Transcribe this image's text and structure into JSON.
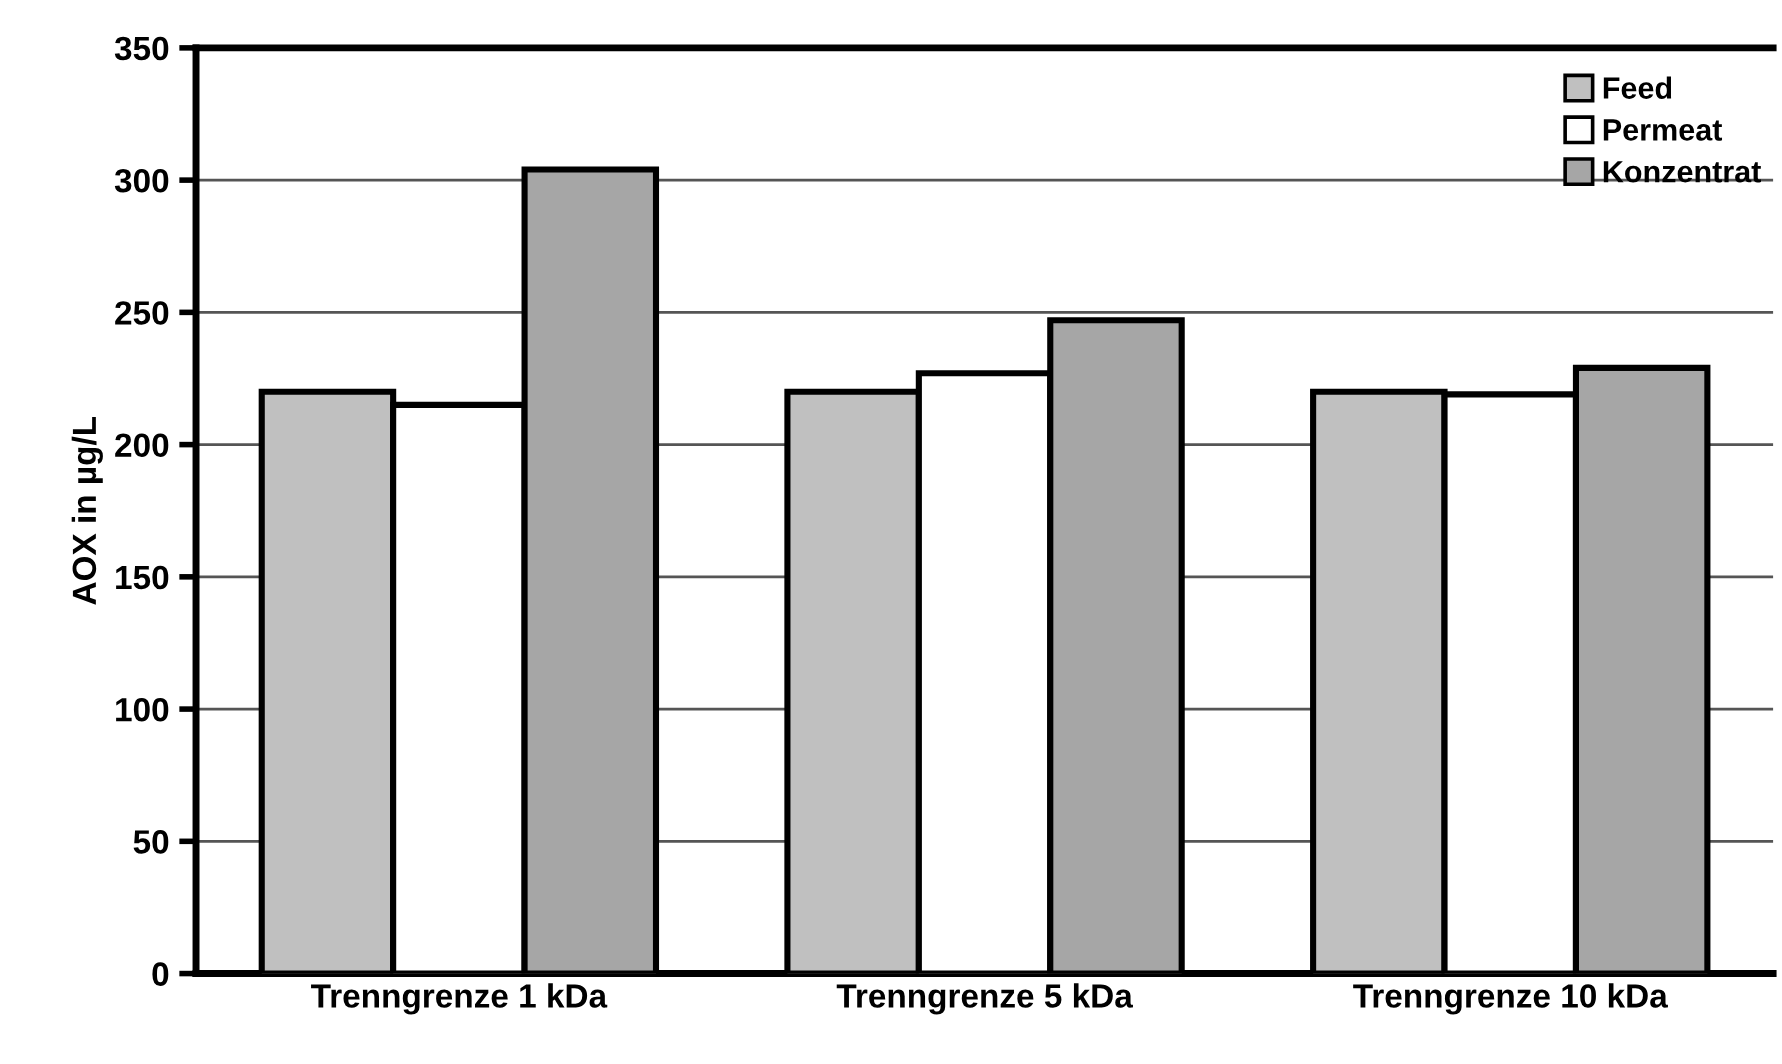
{
  "chart_data": {
    "type": "bar",
    "ylabel": "AOX in µg/L",
    "categories": [
      "Trenngrenze 1 kDa",
      "Trenngrenze 5 kDa",
      "Trenngrenze 10 kDa"
    ],
    "series": [
      {
        "name": "Feed",
        "color": "#c0c0c0",
        "values": [
          220,
          220,
          220
        ]
      },
      {
        "name": "Permeat",
        "color": "#ffffff",
        "values": [
          215,
          227,
          219
        ]
      },
      {
        "name": "Konzentrat",
        "color": "#a6a6a6",
        "values": [
          304,
          247,
          229
        ]
      }
    ],
    "ylim": [
      0,
      350
    ],
    "yticks": [
      0,
      50,
      100,
      150,
      200,
      250,
      300,
      350
    ],
    "grid": "y",
    "legend": "top right"
  }
}
